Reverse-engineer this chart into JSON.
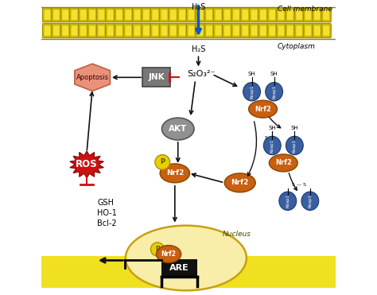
{
  "bg_color": "#ffffff",
  "membrane_color": "#f0e020",
  "membrane_dark": "#b8a800",
  "cytoplasm_label": "Cytoplasm",
  "cell_membrane_label": "Cell membrane",
  "h2s_top_label": "H₂S",
  "h2s_label": "H₂S",
  "s2o3_label": "S₂O₃²⁻",
  "jnk_label": "JNK",
  "akt_label": "AKT",
  "nrf2_label": "Nrf2",
  "nrf2_color": "#c86010",
  "keap1_color": "#3a5fa0",
  "akt_color": "#909090",
  "p_color": "#e8d000",
  "apoptosis_label": "Apoptosis",
  "apoptosis_color": "#e8927a",
  "ros_label": "ROS",
  "ros_color": "#cc1111",
  "are_label": "ARE",
  "nucleus_label": "Nucleus",
  "gsh_label": "GSH",
  "ho1_label": "HO-1",
  "bcl2_label": "Bcl-2",
  "arrow_color": "#111111",
  "red_color": "#cc1111",
  "blue_arrow_color": "#1155cc",
  "fig_w": 4.74,
  "fig_h": 3.71,
  "dpi": 100
}
